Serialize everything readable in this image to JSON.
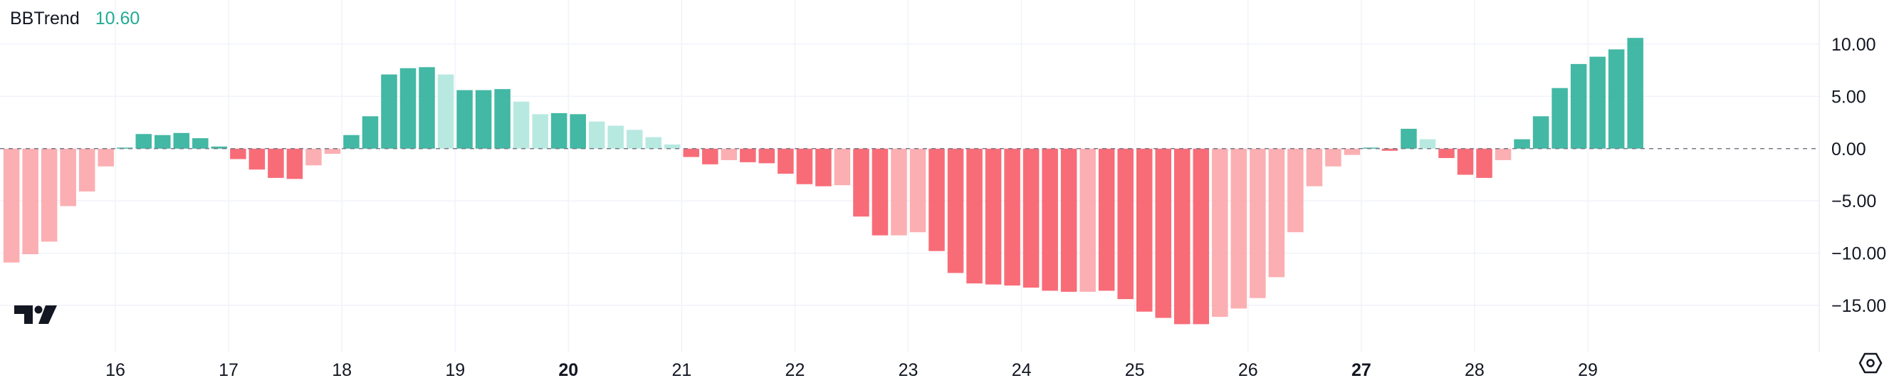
{
  "legend": {
    "name": "BBTrend",
    "value": "10.60"
  },
  "colors": {
    "pos_strong": "#22ab94",
    "pos_weak": "#ace5dc",
    "neg_strong": "#f7525f",
    "neg_weak": "#faa1a4",
    "value_text": "#22ab94",
    "grid": "#f0f3fa",
    "text": "#131722"
  },
  "icons": {
    "logo": "tradingview-logo-icon",
    "settings": "hexagon-settings-icon"
  },
  "chart_data": {
    "type": "bar",
    "title": "BBTrend",
    "xlabel": "",
    "ylabel": "",
    "ylim": [
      -19.5,
      13
    ],
    "yticks": [
      10,
      5,
      0,
      -5,
      -10,
      -15
    ],
    "ytick_labels": [
      "10.00",
      "5.00",
      "0.00",
      "−5.00",
      "−10.00",
      "−15.00"
    ],
    "xticks": [
      {
        "label": "16",
        "x": 16,
        "bold": false
      },
      {
        "label": "17",
        "x": 17,
        "bold": false
      },
      {
        "label": "18",
        "x": 18,
        "bold": false
      },
      {
        "label": "19",
        "x": 19,
        "bold": false
      },
      {
        "label": "20",
        "x": 20,
        "bold": true
      },
      {
        "label": "21",
        "x": 21,
        "bold": false
      },
      {
        "label": "22",
        "x": 22,
        "bold": false
      },
      {
        "label": "23",
        "x": 23,
        "bold": false
      },
      {
        "label": "24",
        "x": 24,
        "bold": false
      },
      {
        "label": "25",
        "x": 25,
        "bold": false
      },
      {
        "label": "26",
        "x": 26,
        "bold": false
      },
      {
        "label": "27",
        "x": 27,
        "bold": true
      },
      {
        "label": "28",
        "x": 28,
        "bold": false
      },
      {
        "label": "29",
        "x": 29,
        "bold": false
      }
    ],
    "x_start": 15.083,
    "bar_step": 0.1667,
    "zero_line": "dashed",
    "grid": true,
    "series": [
      {
        "values": [
          -10.9,
          -10.1,
          -8.9,
          -5.5,
          -4.1,
          -1.7,
          0.1,
          1.4,
          1.3,
          1.5,
          1.0,
          0.2,
          -1.0,
          -2.0,
          -2.8,
          -2.9,
          -1.6,
          -0.5,
          1.3,
          3.1,
          7.1,
          7.7,
          7.8,
          7.1,
          5.6,
          5.6,
          5.7,
          4.5,
          3.3,
          3.4,
          3.3,
          2.6,
          2.2,
          1.8,
          1.1,
          0.4,
          -0.8,
          -1.5,
          -1.1,
          -1.3,
          -1.4,
          -2.4,
          -3.4,
          -3.6,
          -3.5,
          -6.5,
          -8.3,
          -8.3,
          -8.0,
          -9.8,
          -11.9,
          -12.9,
          -13.0,
          -13.1,
          -13.3,
          -13.6,
          -13.7,
          -13.7,
          -13.6,
          -14.4,
          -15.6,
          -16.2,
          -16.8,
          -16.8,
          -16.1,
          -15.3,
          -14.3,
          -12.3,
          -8.0,
          -3.6,
          -1.7,
          -0.6,
          0.1,
          -0.2,
          1.9,
          0.9,
          -0.9,
          -2.5,
          -2.8,
          -1.1,
          0.9,
          3.1,
          5.8,
          8.1,
          8.8,
          9.5,
          10.6
        ],
        "colors": [
          "nw",
          "nw",
          "nw",
          "nw",
          "nw",
          "nw",
          "ps",
          "ps",
          "ps",
          "ps",
          "ps",
          "ps",
          "ns",
          "ns",
          "ns",
          "ns",
          "nw",
          "nw",
          "ps",
          "ps",
          "ps",
          "ps",
          "ps",
          "pw",
          "ps",
          "ps",
          "ps",
          "pw",
          "pw",
          "ps",
          "ps",
          "pw",
          "pw",
          "pw",
          "pw",
          "pw",
          "ns",
          "ns",
          "nw",
          "ns",
          "ns",
          "ns",
          "ns",
          "ns",
          "nw",
          "ns",
          "ns",
          "nw",
          "nw",
          "ns",
          "ns",
          "ns",
          "ns",
          "ns",
          "ns",
          "ns",
          "ns",
          "nw",
          "ns",
          "ns",
          "ns",
          "ns",
          "ns",
          "ns",
          "nw",
          "nw",
          "nw",
          "nw",
          "nw",
          "nw",
          "nw",
          "nw",
          "ps",
          "ns",
          "ps",
          "pw",
          "ns",
          "ns",
          "ns",
          "nw",
          "ps",
          "ps",
          "ps",
          "ps",
          "ps",
          "ps",
          "ps"
        ]
      }
    ]
  }
}
